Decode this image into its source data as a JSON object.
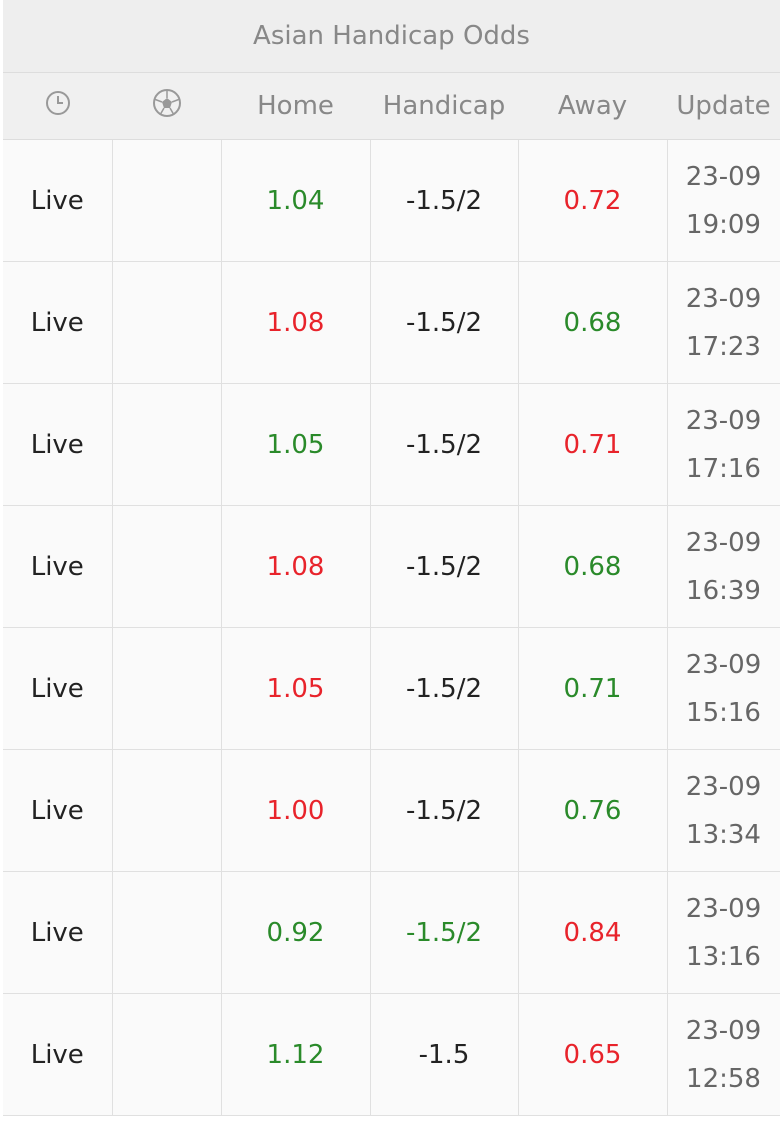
{
  "title": "Asian Handicap Odds",
  "columns": {
    "home": "Home",
    "handicap": "Handicap",
    "away": "Away",
    "update": "Update"
  },
  "rows": [
    {
      "status": "Live",
      "home": "1.04",
      "home_color": "#2a8a2a",
      "handicap": "-1.5/2",
      "handicap_color": "#222222",
      "away": "0.72",
      "away_color": "#e8232b",
      "date": "23-09",
      "time": "19:09"
    },
    {
      "status": "Live",
      "home": "1.08",
      "home_color": "#e8232b",
      "handicap": "-1.5/2",
      "handicap_color": "#222222",
      "away": "0.68",
      "away_color": "#2a8a2a",
      "date": "23-09",
      "time": "17:23"
    },
    {
      "status": "Live",
      "home": "1.05",
      "home_color": "#2a8a2a",
      "handicap": "-1.5/2",
      "handicap_color": "#222222",
      "away": "0.71",
      "away_color": "#e8232b",
      "date": "23-09",
      "time": "17:16"
    },
    {
      "status": "Live",
      "home": "1.08",
      "home_color": "#e8232b",
      "handicap": "-1.5/2",
      "handicap_color": "#222222",
      "away": "0.68",
      "away_color": "#2a8a2a",
      "date": "23-09",
      "time": "16:39"
    },
    {
      "status": "Live",
      "home": "1.05",
      "home_color": "#e8232b",
      "handicap": "-1.5/2",
      "handicap_color": "#222222",
      "away": "0.71",
      "away_color": "#2a8a2a",
      "date": "23-09",
      "time": "15:16"
    },
    {
      "status": "Live",
      "home": "1.00",
      "home_color": "#e8232b",
      "handicap": "-1.5/2",
      "handicap_color": "#222222",
      "away": "0.76",
      "away_color": "#2a8a2a",
      "date": "23-09",
      "time": "13:34"
    },
    {
      "status": "Live",
      "home": "0.92",
      "home_color": "#2a8a2a",
      "handicap": "-1.5/2",
      "handicap_color": "#2a8a2a",
      "away": "0.84",
      "away_color": "#e8232b",
      "date": "23-09",
      "time": "13:16"
    },
    {
      "status": "Live",
      "home": "1.12",
      "home_color": "#2a8a2a",
      "handicap": "-1.5",
      "handicap_color": "#222222",
      "away": "0.65",
      "away_color": "#e8232b",
      "date": "23-09",
      "time": "12:58"
    }
  ]
}
